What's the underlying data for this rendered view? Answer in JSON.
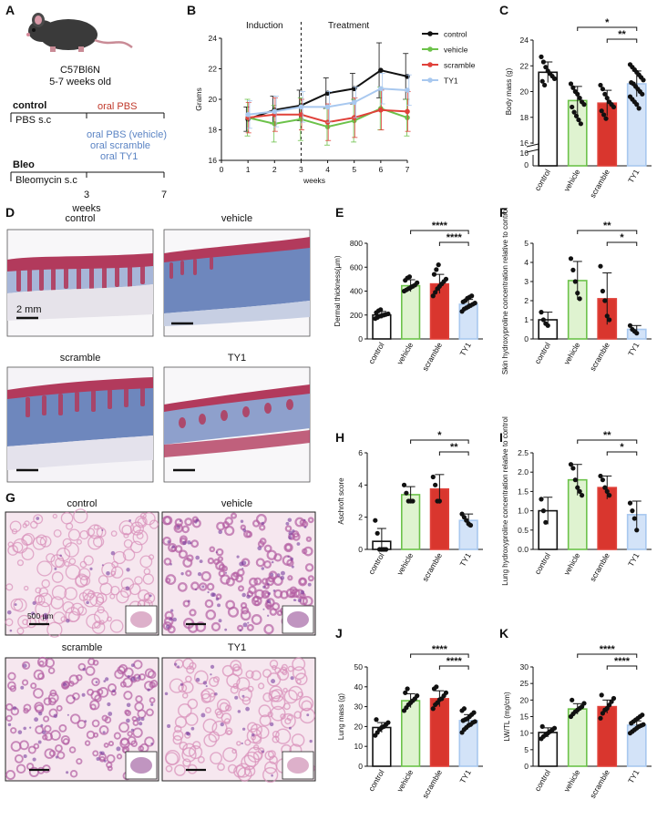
{
  "colors": {
    "control": "#111111",
    "vehicle": "#6cc24a",
    "scramble": "#e0413a",
    "TY1": "#a8c8ef",
    "vehicle_fill": "#dff3d0",
    "scramble_fill": "#d9362e",
    "TY1_fill": "#d3e3f8",
    "oral_pbs": "#c0392b",
    "oral_bleo": "#5b84c4",
    "trichrome_blue": "#7f95c2",
    "trichrome_red": "#b23a5c",
    "he_pink": "#e8b5cf"
  },
  "panels": {
    "A": {
      "label": "A",
      "strain": "C57Bl6N",
      "age": "5-7 weeks old",
      "control_title": "control",
      "control_sc": "PBS s.c",
      "control_oral": "oral PBS",
      "bleo_title": "Bleo",
      "bleo_sc": "Bleomycin s.c",
      "bleo_oral": [
        "oral PBS (vehicle)",
        "oral scramble",
        "oral TY1"
      ],
      "tick_3": "3",
      "tick_7": "7",
      "weeks": "weeks",
      "mouse_icon": "mouse-icon"
    },
    "B": {
      "label": "B",
      "induction": "Induction",
      "treatment": "Treatment"
    },
    "C": {
      "label": "C",
      "stars": [
        "*",
        "**"
      ]
    },
    "D": {
      "label": "D",
      "titles": [
        "control",
        "vehicle",
        "scramble",
        "TY1"
      ],
      "scale": "2 mm"
    },
    "E": {
      "label": "E",
      "stars": [
        "****",
        "****"
      ]
    },
    "F": {
      "label": "F",
      "stars": [
        "**",
        "*"
      ]
    },
    "G": {
      "label": "G",
      "titles": [
        "control",
        "vehicle",
        "scramble",
        "TY1"
      ],
      "scale": "500 µm"
    },
    "H": {
      "label": "H",
      "stars": [
        "*",
        "**"
      ]
    },
    "I": {
      "label": "I",
      "stars": [
        "**",
        "*"
      ]
    },
    "J": {
      "label": "J",
      "stars": [
        "****",
        "****"
      ]
    },
    "K": {
      "label": "K",
      "stars": [
        "****",
        "****"
      ]
    }
  },
  "chart_data": [
    {
      "id": "B",
      "type": "line",
      "x": [
        1,
        2,
        3,
        4,
        5,
        6,
        7
      ],
      "xlabel": "weeks",
      "ylabel": "Grams",
      "xlim": [
        0,
        7
      ],
      "ylim": [
        16,
        24
      ],
      "xticks": [
        "0",
        "1",
        "2",
        "3",
        "4",
        "5",
        "6",
        "7"
      ],
      "yticks": [
        "16",
        "18",
        "20",
        "22",
        "24"
      ],
      "annotation_line_x": 3,
      "legend": "top-right",
      "series": [
        {
          "name": "control",
          "values": [
            18.7,
            19.3,
            19.6,
            20.4,
            20.7,
            21.9,
            21.5
          ],
          "err": [
            0.8,
            0.9,
            1.0,
            1.0,
            1.0,
            1.8,
            1.5
          ]
        },
        {
          "name": "vehicle",
          "values": [
            18.8,
            18.4,
            18.7,
            18.2,
            18.6,
            19.4,
            18.8
          ],
          "err": [
            1.2,
            1.2,
            1.4,
            1.2,
            1.4,
            1.4,
            1.2
          ]
        },
        {
          "name": "scramble",
          "values": [
            18.8,
            19.0,
            19.0,
            18.5,
            18.8,
            19.3,
            19.2
          ],
          "err": [
            1.0,
            1.1,
            1.0,
            1.2,
            1.3,
            1.3,
            1.3
          ]
        },
        {
          "name": "TY1",
          "values": [
            19.0,
            19.2,
            19.5,
            19.5,
            19.8,
            20.7,
            20.6
          ],
          "err": [
            0.9,
            1.0,
            1.0,
            1.0,
            1.0,
            1.0,
            1.0
          ]
        }
      ]
    },
    {
      "id": "C",
      "type": "bar",
      "categories": [
        "control",
        "vehicle",
        "scramble",
        "TY1"
      ],
      "values": [
        21.5,
        19.3,
        19.1,
        20.6
      ],
      "err": [
        0.8,
        1.1,
        1.0,
        1.0
      ],
      "ylabel": "Body mass (g)",
      "ylim": [
        16,
        24
      ],
      "yticks": [
        "16",
        "18",
        "20",
        "22",
        "24"
      ],
      "broken_axis_ticks": [
        "16",
        "0"
      ],
      "points": [
        [
          22.7,
          22.3,
          21.9,
          21.6,
          21.4,
          21.2,
          21.0,
          20.8,
          20.5
        ],
        [
          20.6,
          20.3,
          20.0,
          19.8,
          19.5,
          19.2,
          19.0,
          18.8,
          18.4,
          18.1,
          17.8,
          17.5
        ],
        [
          20.5,
          20.2,
          19.8,
          19.5,
          19.2,
          19.0,
          18.8,
          18.5,
          18.2,
          17.9
        ],
        [
          22.1,
          21.9,
          21.7,
          21.5,
          21.3,
          21.1,
          20.9,
          20.7,
          20.6,
          20.4,
          20.2,
          20.0,
          19.8,
          19.6,
          19.4,
          19.2,
          19.0,
          18.7
        ]
      ]
    },
    {
      "id": "E",
      "type": "bar",
      "categories": [
        "control",
        "vehicle",
        "scramble",
        "TY1"
      ],
      "values": [
        200,
        445,
        460,
        290
      ],
      "err": [
        30,
        50,
        80,
        40
      ],
      "ylabel": "Dermal thickness(µm)",
      "ylim": [
        0,
        800
      ],
      "yticks": [
        "0",
        "200",
        "400",
        "600",
        "800"
      ],
      "points": [
        [
          170,
          180,
          190,
          195,
          200,
          205,
          210,
          220,
          235,
          245
        ],
        [
          400,
          410,
          420,
          430,
          440,
          450,
          470,
          490,
          510,
          520
        ],
        [
          360,
          390,
          420,
          440,
          460,
          480,
          500,
          540,
          580,
          620
        ],
        [
          230,
          250,
          260,
          270,
          280,
          290,
          300,
          310,
          320,
          340,
          350,
          360
        ]
      ]
    },
    {
      "id": "F",
      "type": "bar",
      "categories": [
        "control",
        "vehicle",
        "scramble",
        "TY1"
      ],
      "values": [
        1.0,
        3.05,
        2.1,
        0.5
      ],
      "err": [
        0.4,
        1.0,
        1.35,
        0.2
      ],
      "ylabel": "Skin hydroxyproline concentration relative to control",
      "ylim": [
        0,
        5
      ],
      "yticks": [
        "0",
        "1",
        "2",
        "3",
        "4",
        "5"
      ],
      "points": [
        [
          1.4,
          1.0,
          0.8,
          0.7
        ],
        [
          4.2,
          3.6,
          3.0,
          2.4,
          2.1
        ],
        [
          3.8,
          2.5,
          2.0,
          1.2,
          1.0
        ],
        [
          0.7,
          0.5,
          0.4,
          0.3
        ]
      ]
    },
    {
      "id": "H",
      "type": "bar",
      "categories": [
        "control",
        "vehicle",
        "scramble",
        "TY1"
      ],
      "values": [
        0.5,
        3.4,
        3.75,
        1.8
      ],
      "err": [
        0.8,
        0.5,
        0.9,
        0.4
      ],
      "ylabel": "Aschroft score",
      "ylim": [
        0,
        6
      ],
      "yticks": [
        "0",
        "2",
        "4",
        "6"
      ],
      "points": [
        [
          1.8,
          1.0,
          0,
          0,
          0,
          0
        ],
        [
          4.0,
          3.5,
          3.0,
          3.0,
          3.0
        ],
        [
          4.5,
          4.0,
          3.0,
          3.0
        ],
        [
          2.2,
          2.0,
          1.8,
          1.6,
          1.5
        ]
      ]
    },
    {
      "id": "I",
      "type": "bar",
      "categories": [
        "control",
        "vehicle",
        "scramble",
        "TY1"
      ],
      "values": [
        1.0,
        1.8,
        1.6,
        0.9
      ],
      "err": [
        0.35,
        0.4,
        0.3,
        0.35
      ],
      "ylabel": "Lung hydroxyproline concentration relative to control",
      "ylim": [
        0,
        2.5
      ],
      "yticks": [
        "0.0",
        "0.5",
        "1.0",
        "1.5",
        "2.0",
        "2.5"
      ],
      "points": [
        [
          1.3,
          1.0,
          0.7
        ],
        [
          2.2,
          2.1,
          1.8,
          1.6,
          1.5,
          1.4
        ],
        [
          1.9,
          1.8,
          1.6,
          1.5,
          1.4
        ],
        [
          1.2,
          1.0,
          0.8,
          0.5
        ]
      ]
    },
    {
      "id": "J",
      "type": "bar",
      "categories": [
        "control",
        "vehicle",
        "scramble",
        "TY1"
      ],
      "values": [
        19.5,
        33.0,
        34.0,
        23.0
      ],
      "err": [
        2.5,
        3.5,
        4.0,
        3.0
      ],
      "ylabel": "Lung mass (g)",
      "ylim": [
        0,
        50
      ],
      "yticks": [
        "0",
        "10",
        "20",
        "30",
        "40",
        "50"
      ],
      "points": [
        [
          15.5,
          17,
          18.5,
          19.5,
          20,
          21,
          22,
          23.5
        ],
        [
          28,
          29.5,
          31,
          32,
          33,
          34,
          35.5,
          37,
          39
        ],
        [
          29,
          31,
          32,
          33.5,
          34,
          35.5,
          37,
          39,
          40
        ],
        [
          17,
          18.5,
          19.5,
          20.5,
          21,
          22,
          22.5,
          23,
          23.5,
          24,
          25,
          26,
          27,
          28,
          29
        ]
      ]
    },
    {
      "id": "K",
      "type": "bar",
      "categories": [
        "control",
        "vehicle",
        "scramble",
        "TY1"
      ],
      "values": [
        10.2,
        17.3,
        18.0,
        12.4
      ],
      "err": [
        1.4,
        1.6,
        2.0,
        1.3
      ],
      "ylabel": "LW/TL (mg/cm)",
      "ylim": [
        0,
        30
      ],
      "yticks": [
        "0",
        "5",
        "10",
        "15",
        "20",
        "25",
        "30"
      ],
      "points": [
        [
          8.3,
          9,
          9.5,
          10,
          10.5,
          11,
          11.5,
          12
        ],
        [
          15,
          15.8,
          16.5,
          17,
          17.5,
          18,
          19,
          20
        ],
        [
          14.5,
          16,
          17,
          17.5,
          18.5,
          19.5,
          20.5,
          21.5
        ],
        [
          10,
          10.5,
          11,
          11.5,
          12,
          12.3,
          12.6,
          13,
          13.5,
          14,
          14.5,
          15,
          15.5
        ]
      ]
    }
  ]
}
